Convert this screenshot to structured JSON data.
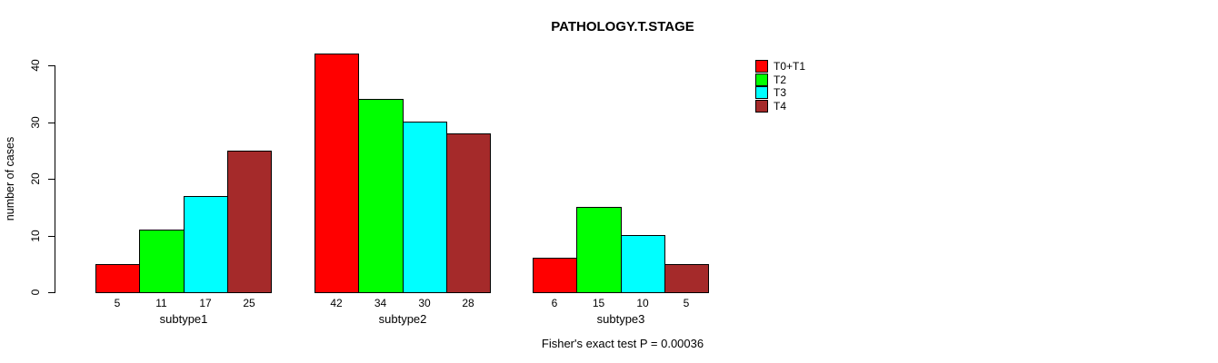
{
  "title": "PATHOLOGY.T.STAGE",
  "annotation": "Fisher's exact test P = 0.00036",
  "chart_data": {
    "type": "bar",
    "title": "PATHOLOGY.T.STAGE",
    "xlabel": "",
    "ylabel": "number of cases",
    "categories": [
      "subtype1",
      "subtype2",
      "subtype3"
    ],
    "series": [
      {
        "name": "T0+T1",
        "color": "#FF0000",
        "values": [
          5,
          42,
          6
        ]
      },
      {
        "name": "T2",
        "color": "#00FF00",
        "values": [
          11,
          34,
          15
        ]
      },
      {
        "name": "T3",
        "color": "#00FFFF",
        "values": [
          17,
          30,
          10
        ]
      },
      {
        "name": "T4",
        "color": "#A52A2A",
        "values": [
          25,
          28,
          5
        ]
      }
    ],
    "bar_value_labels": [
      [
        "5",
        "11",
        "17",
        "25"
      ],
      [
        "42",
        "34",
        "30",
        "28"
      ],
      [
        "6",
        "15",
        "10",
        "5"
      ]
    ],
    "y_ticks": [
      0,
      10,
      20,
      30,
      40
    ],
    "ylim": [
      0,
      40
    ],
    "grid": false,
    "legend_position": "right-inside",
    "legend_labels": [
      "T0+T1",
      "T2",
      "T3",
      "T4"
    ],
    "annotation_below": "Fisher's exact test P = 0.00036"
  }
}
